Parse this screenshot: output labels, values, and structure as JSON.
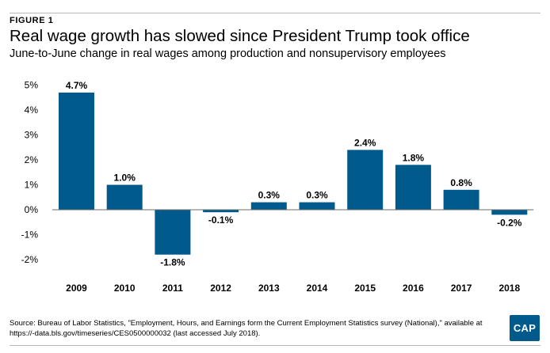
{
  "header": {
    "figure_label": "FIGURE 1",
    "title": "Real wage growth has slowed since President Trump took office",
    "subtitle": "June-to-June change in real wages among production and nonsupervisory employees"
  },
  "chart_data": {
    "type": "bar",
    "categories": [
      "2009",
      "2010",
      "2011",
      "2012",
      "2013",
      "2014",
      "2015",
      "2016",
      "2017",
      "2018"
    ],
    "values": [
      4.7,
      1.0,
      -1.8,
      -0.1,
      0.3,
      0.3,
      2.4,
      1.8,
      0.8,
      -0.2
    ],
    "data_labels": [
      "4.7%",
      "1.0%",
      "-1.8%",
      "-0.1%",
      "0.3%",
      "0.3%",
      "2.4%",
      "1.8%",
      "0.8%",
      "-0.2%"
    ],
    "y_ticks": [
      5,
      4,
      3,
      2,
      1,
      0,
      -1,
      -2
    ],
    "y_tick_labels": [
      "5%",
      "4%",
      "3%",
      "2%",
      "1%",
      "0%",
      "-1%",
      "-2%"
    ],
    "ylim": [
      -2,
      5
    ],
    "grid": false,
    "legend": "none",
    "bar_color": "#005a8c"
  },
  "footer": {
    "source": "Source: Bureau of Labor Statistics, \"Employment, Hours, and Earnings form the Current Employment Statistics survey (National),\" available at https://-data.bls.gov/timeseries/CES0500000032 (last accessed July 2018).",
    "logo_text": "CAP"
  }
}
